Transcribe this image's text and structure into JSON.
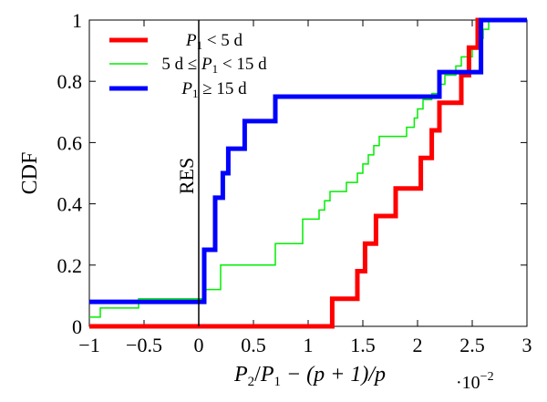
{
  "chart_data": {
    "type": "line",
    "step": true,
    "xlabel": "P2/P1 − (p + 1)/p",
    "x_multiplier": "·10−2",
    "ylabel": "CDF",
    "xlim": [
      -1,
      3
    ],
    "ylim": [
      0,
      1
    ],
    "xticks": [
      -1,
      -0.5,
      0,
      0.5,
      1,
      1.5,
      2,
      2.5,
      3
    ],
    "xtick_labels": [
      "−1",
      "−0.5",
      "0",
      "0.5",
      "1",
      "1.5",
      "2",
      "2.5",
      "3"
    ],
    "yticks": [
      0,
      0.2,
      0.4,
      0.6,
      0.8,
      1
    ],
    "ytick_labels": [
      "0",
      "0.2",
      "0.4",
      "0.6",
      "0.8",
      "1"
    ],
    "legend_position": "top-left",
    "annotation": {
      "text": "RES",
      "x": 0
    },
    "series": [
      {
        "name": "P1 < 5 d",
        "color": "#ff0000",
        "width": 5,
        "x": [
          -1,
          1.22,
          1.45,
          1.52,
          1.62,
          1.7,
          1.8,
          1.94,
          2.03,
          2.13,
          2.2,
          2.3,
          2.4,
          2.47,
          2.55,
          2.62,
          3
        ],
        "y": [
          0,
          0.09,
          0.18,
          0.27,
          0.36,
          0.36,
          0.45,
          0.45,
          0.55,
          0.64,
          0.73,
          0.73,
          0.82,
          0.91,
          1,
          1,
          1
        ]
      },
      {
        "name": "5 d ≤ P1 < 15 d",
        "color": "#00ee00",
        "width": 1.5,
        "x": [
          -1,
          -0.9,
          -0.55,
          0.05,
          0.2,
          0.25,
          0.7,
          0.95,
          1.1,
          1.15,
          1.2,
          1.27,
          1.35,
          1.45,
          1.5,
          1.55,
          1.6,
          1.65,
          1.8,
          1.9,
          1.97,
          2.0,
          2.05,
          2.1,
          2.13,
          2.2,
          2.25,
          2.3,
          2.35,
          2.4,
          2.5,
          2.55,
          2.6,
          2.65,
          2.7,
          3
        ],
        "y": [
          0.03,
          0.06,
          0.09,
          0.12,
          0.2,
          0.2,
          0.27,
          0.35,
          0.38,
          0.41,
          0.44,
          0.44,
          0.47,
          0.5,
          0.53,
          0.56,
          0.59,
          0.62,
          0.62,
          0.65,
          0.68,
          0.71,
          0.74,
          0.74,
          0.76,
          0.79,
          0.82,
          0.82,
          0.85,
          0.88,
          0.91,
          0.94,
          0.97,
          1,
          1,
          1
        ]
      },
      {
        "name": "P1 ≥ 15 d",
        "color": "#0000ff",
        "width": 5,
        "x": [
          -1,
          0.05,
          0.15,
          0.22,
          0.27,
          0.42,
          0.7,
          1.12,
          1.85,
          2.2,
          2.58,
          3
        ],
        "y": [
          0.08,
          0.25,
          0.42,
          0.5,
          0.58,
          0.67,
          0.75,
          0.75,
          0.75,
          0.83,
          1,
          1
        ]
      }
    ]
  },
  "legend": [
    {
      "pre": "",
      "var": "P",
      "sub": "1",
      "post": " < 5 d"
    },
    {
      "pre": "5 d ≤ ",
      "var": "P",
      "sub": "1",
      "post": " < 15 d"
    },
    {
      "pre": "",
      "var": "P",
      "sub": "1",
      "post": " ≥ 15 d"
    }
  ],
  "xlabel_parts": {
    "p2": "P",
    "s2": "2",
    "slash": "/",
    "p1": "P",
    "s1": "1",
    "rest": " − (p + 1)/p"
  },
  "multiplier_parts": {
    "base": "·10",
    "exp": "−2"
  }
}
